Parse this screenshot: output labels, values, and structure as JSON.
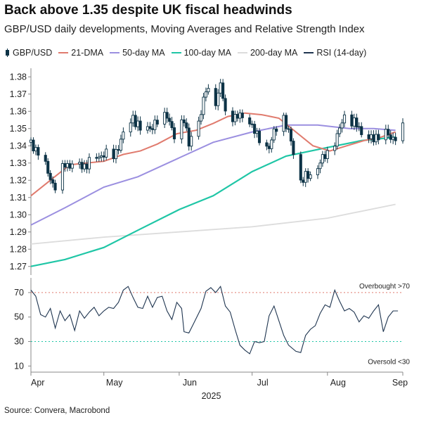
{
  "title": "Back above 1.35 despite UK fiscal headwinds",
  "subtitle": "GBP/USD daily developments, Moving Averages and Relative Strength Index",
  "source": "Source: Convera, Macrobond",
  "legend": [
    {
      "label": "GBP/USD",
      "color": "#0d3346",
      "kind": "candle"
    },
    {
      "label": "21-DMA",
      "color": "#e07b6e",
      "kind": "line"
    },
    {
      "label": "50-day MA",
      "color": "#9b8fe0",
      "kind": "line"
    },
    {
      "label": "100-day MA",
      "color": "#1fc6a6",
      "kind": "line"
    },
    {
      "label": "200-day MA",
      "color": "#dcdcdc",
      "kind": "line"
    },
    {
      "label": "RSI (14-day)",
      "color": "#1f3550",
      "kind": "line"
    }
  ],
  "chart_data": {
    "type": "candlestick",
    "x_start": "2025-04-01",
    "x_end": "2025-09-01",
    "x_tick_labels": [
      "Apr",
      "May",
      "Jun",
      "Jul",
      "Aug",
      "Sep"
    ],
    "x_year_label": "2025",
    "price_panel": {
      "ylim": [
        1.265,
        1.385
      ],
      "y_ticks": [
        "1.27",
        "1.28",
        "1.29",
        "1.30",
        "1.31",
        "1.32",
        "1.33",
        "1.34",
        "1.35",
        "1.36",
        "1.37",
        "1.38"
      ],
      "close_anchors": [
        [
          "2025-04-01",
          1.342
        ],
        [
          "2025-04-04",
          1.336
        ],
        [
          "2025-04-08",
          1.325
        ],
        [
          "2025-04-11",
          1.315
        ],
        [
          "2025-04-15",
          1.33
        ],
        [
          "2025-04-18",
          1.328
        ],
        [
          "2025-04-24",
          1.329
        ],
        [
          "2025-04-30",
          1.335
        ],
        [
          "2025-05-05",
          1.334
        ],
        [
          "2025-05-09",
          1.346
        ],
        [
          "2025-05-13",
          1.357
        ],
        [
          "2025-05-16",
          1.349
        ],
        [
          "2025-05-22",
          1.352
        ],
        [
          "2025-05-27",
          1.359
        ],
        [
          "2025-05-30",
          1.344
        ],
        [
          "2025-06-03",
          1.357
        ],
        [
          "2025-06-05",
          1.34
        ],
        [
          "2025-06-09",
          1.355
        ],
        [
          "2025-06-12",
          1.372
        ],
        [
          "2025-06-16",
          1.366
        ],
        [
          "2025-06-18",
          1.376
        ],
        [
          "2025-06-20",
          1.358
        ],
        [
          "2025-06-25",
          1.357
        ],
        [
          "2025-06-30",
          1.355
        ],
        [
          "2025-07-03",
          1.345
        ],
        [
          "2025-07-08",
          1.339
        ],
        [
          "2025-07-11",
          1.351
        ],
        [
          "2025-07-14",
          1.357
        ],
        [
          "2025-07-17",
          1.342
        ],
        [
          "2025-07-21",
          1.32
        ],
        [
          "2025-07-25",
          1.323
        ],
        [
          "2025-07-30",
          1.332
        ],
        [
          "2025-08-05",
          1.345
        ],
        [
          "2025-08-08",
          1.358
        ],
        [
          "2025-08-12",
          1.353
        ],
        [
          "2025-08-16",
          1.347
        ],
        [
          "2025-08-20",
          1.343
        ],
        [
          "2025-08-24",
          1.351
        ],
        [
          "2025-08-27",
          1.343
        ],
        [
          "2025-09-01",
          1.351
        ]
      ],
      "ma21": [
        [
          "2025-04-01",
          1.311
        ],
        [
          "2025-04-09",
          1.32
        ],
        [
          "2025-04-17",
          1.329
        ],
        [
          "2025-04-24",
          1.33
        ],
        [
          "2025-05-01",
          1.331
        ],
        [
          "2025-05-09",
          1.335
        ],
        [
          "2025-05-16",
          1.337
        ],
        [
          "2025-05-23",
          1.341
        ],
        [
          "2025-05-31",
          1.347
        ],
        [
          "2025-06-08",
          1.349
        ],
        [
          "2025-06-15",
          1.353
        ],
        [
          "2025-06-21",
          1.357
        ],
        [
          "2025-06-28",
          1.359
        ],
        [
          "2025-07-05",
          1.358
        ],
        [
          "2025-07-12",
          1.356
        ],
        [
          "2025-07-19",
          1.348
        ],
        [
          "2025-07-26",
          1.34
        ],
        [
          "2025-08-02",
          1.337
        ],
        [
          "2025-08-09",
          1.34
        ],
        [
          "2025-08-16",
          1.343
        ],
        [
          "2025-08-23",
          1.345
        ],
        [
          "2025-08-29",
          1.348
        ]
      ],
      "ma50": [
        [
          "2025-04-01",
          1.294
        ],
        [
          "2025-04-15",
          1.304
        ],
        [
          "2025-05-01",
          1.316
        ],
        [
          "2025-05-15",
          1.322
        ],
        [
          "2025-06-01",
          1.333
        ],
        [
          "2025-06-15",
          1.342
        ],
        [
          "2025-07-01",
          1.348
        ],
        [
          "2025-07-15",
          1.352
        ],
        [
          "2025-07-28",
          1.352
        ],
        [
          "2025-08-10",
          1.35
        ],
        [
          "2025-08-20",
          1.35
        ],
        [
          "2025-08-29",
          1.349
        ]
      ],
      "ma100": [
        [
          "2025-04-01",
          1.27
        ],
        [
          "2025-04-15",
          1.274
        ],
        [
          "2025-05-01",
          1.281
        ],
        [
          "2025-05-15",
          1.291
        ],
        [
          "2025-06-01",
          1.303
        ],
        [
          "2025-06-15",
          1.311
        ],
        [
          "2025-07-01",
          1.325
        ],
        [
          "2025-07-15",
          1.334
        ],
        [
          "2025-08-01",
          1.339
        ],
        [
          "2025-08-15",
          1.343
        ],
        [
          "2025-08-29",
          1.345
        ]
      ],
      "ma200": [
        [
          "2025-04-01",
          1.283
        ],
        [
          "2025-05-01",
          1.287
        ],
        [
          "2025-06-01",
          1.29
        ],
        [
          "2025-07-01",
          1.293
        ],
        [
          "2025-08-01",
          1.298
        ],
        [
          "2025-08-29",
          1.306
        ]
      ]
    },
    "rsi_panel": {
      "ylim": [
        5,
        82
      ],
      "y_ticks": [
        "10",
        "30",
        "50",
        "70"
      ],
      "overbought": 70,
      "oversold": 30,
      "overbought_label": "Overbought >70",
      "oversold_label": "Oversold <30",
      "rsi": [
        [
          "2025-04-01",
          72
        ],
        [
          "2025-04-03",
          67
        ],
        [
          "2025-04-05",
          52
        ],
        [
          "2025-04-07",
          50
        ],
        [
          "2025-04-09",
          57
        ],
        [
          "2025-04-11",
          41
        ],
        [
          "2025-04-13",
          55
        ],
        [
          "2025-04-15",
          47
        ],
        [
          "2025-04-17",
          52
        ],
        [
          "2025-04-19",
          39
        ],
        [
          "2025-04-21",
          55
        ],
        [
          "2025-04-23",
          49
        ],
        [
          "2025-04-25",
          54
        ],
        [
          "2025-04-27",
          58
        ],
        [
          "2025-04-29",
          51
        ],
        [
          "2025-05-01",
          55
        ],
        [
          "2025-05-03",
          58
        ],
        [
          "2025-05-05",
          57
        ],
        [
          "2025-05-07",
          62
        ],
        [
          "2025-05-09",
          72
        ],
        [
          "2025-05-11",
          75
        ],
        [
          "2025-05-13",
          66
        ],
        [
          "2025-05-15",
          58
        ],
        [
          "2025-05-17",
          57
        ],
        [
          "2025-05-19",
          67
        ],
        [
          "2025-05-21",
          58
        ],
        [
          "2025-05-23",
          66
        ],
        [
          "2025-05-25",
          67
        ],
        [
          "2025-05-27",
          55
        ],
        [
          "2025-05-29",
          48
        ],
        [
          "2025-05-31",
          62
        ],
        [
          "2025-06-02",
          57
        ],
        [
          "2025-06-03",
          38
        ],
        [
          "2025-06-05",
          37
        ],
        [
          "2025-06-07",
          45
        ],
        [
          "2025-06-10",
          57
        ],
        [
          "2025-06-12",
          71
        ],
        [
          "2025-06-14",
          74
        ],
        [
          "2025-06-16",
          70
        ],
        [
          "2025-06-18",
          75
        ],
        [
          "2025-06-20",
          59
        ],
        [
          "2025-06-22",
          54
        ],
        [
          "2025-06-24",
          40
        ],
        [
          "2025-06-26",
          27
        ],
        [
          "2025-06-28",
          23
        ],
        [
          "2025-06-30",
          20
        ],
        [
          "2025-07-02",
          30
        ],
        [
          "2025-07-04",
          29
        ],
        [
          "2025-07-06",
          30
        ],
        [
          "2025-07-08",
          51
        ],
        [
          "2025-07-10",
          59
        ],
        [
          "2025-07-12",
          47
        ],
        [
          "2025-07-14",
          35
        ],
        [
          "2025-07-16",
          27
        ],
        [
          "2025-07-19",
          22
        ],
        [
          "2025-07-21",
          21
        ],
        [
          "2025-07-23",
          35
        ],
        [
          "2025-07-25",
          40
        ],
        [
          "2025-07-27",
          43
        ],
        [
          "2025-07-29",
          53
        ],
        [
          "2025-07-31",
          60
        ],
        [
          "2025-08-02",
          58
        ],
        [
          "2025-08-04",
          72
        ],
        [
          "2025-08-06",
          63
        ],
        [
          "2025-08-08",
          55
        ],
        [
          "2025-08-10",
          57
        ],
        [
          "2025-08-12",
          54
        ],
        [
          "2025-08-14",
          46
        ],
        [
          "2025-08-16",
          51
        ],
        [
          "2025-08-18",
          49
        ],
        [
          "2025-08-20",
          55
        ],
        [
          "2025-08-22",
          60
        ],
        [
          "2025-08-24",
          38
        ],
        [
          "2025-08-26",
          50
        ],
        [
          "2025-08-28",
          55
        ],
        [
          "2025-08-30",
          55
        ]
      ]
    }
  }
}
